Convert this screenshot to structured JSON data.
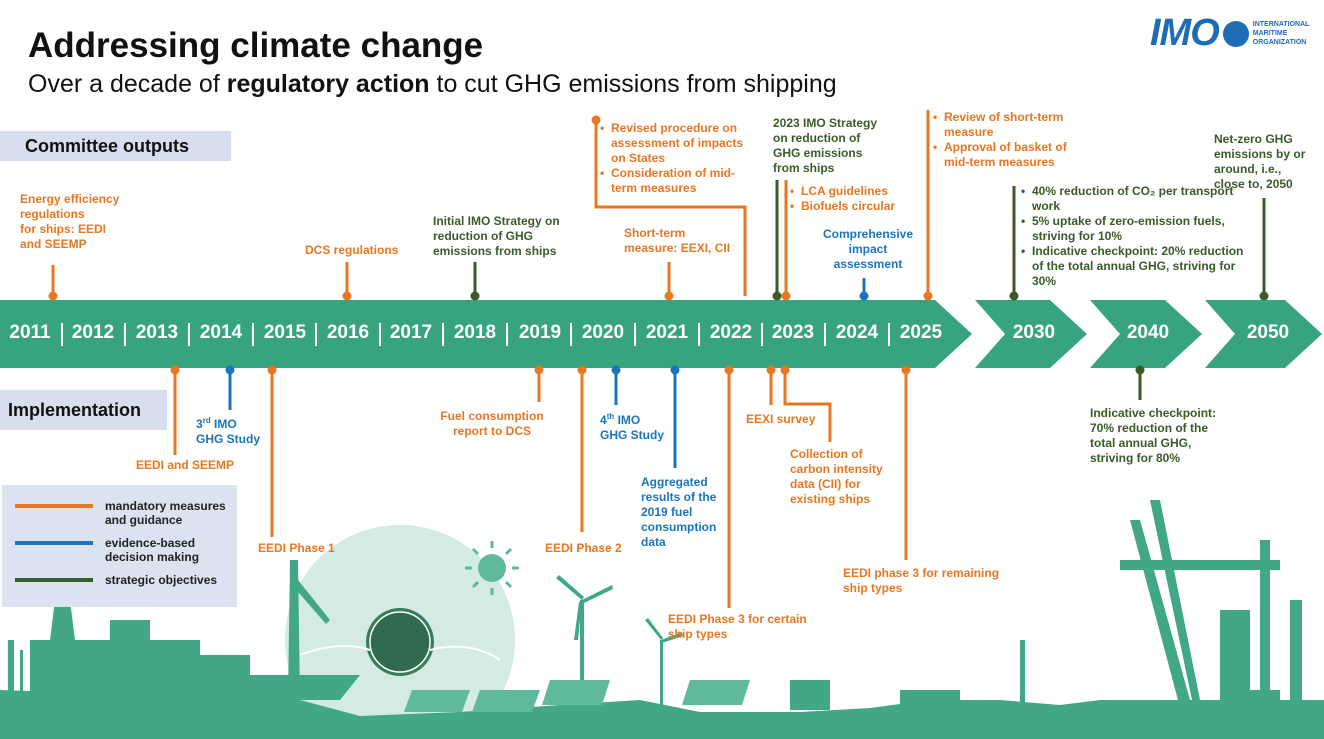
{
  "header": {
    "title": "Addressing climate change",
    "subtitle": {
      "before": "Over a decade of ",
      "bold": "regulatory action",
      "after": " to cut GHG emissions from shipping"
    },
    "logo": {
      "mark": "IMO",
      "lines": [
        "INTERNATIONAL",
        "MARITIME",
        "ORGANIZATION"
      ]
    }
  },
  "sections": [
    "Committee outputs",
    "Implementation"
  ],
  "years": [
    "2011",
    "2012",
    "2013",
    "2014",
    "2015",
    "2016",
    "2017",
    "2018",
    "2019",
    "2020",
    "2021",
    "2022",
    "2023",
    "2024",
    "2025",
    "2030",
    "2040",
    "2050"
  ],
  "legend": [
    {
      "label": "mandatory measures and guidance",
      "color": "#e87722"
    },
    {
      "label": "evidence-based decision making",
      "color": "#1b75bc"
    },
    {
      "label": "strategic objectives",
      "color": "#3b5a2a"
    }
  ],
  "committee_outputs": [
    {
      "color": "#e87722",
      "lines": [
        "Energy efficiency",
        "regulations",
        "for ships: EEDI",
        "and SEEMP"
      ]
    },
    {
      "color": "#e87722",
      "lines": [
        "DCS  regulations"
      ]
    },
    {
      "color": "#3b5a2a",
      "lines": [
        "Initial IMO Strategy on",
        "reduction of GHG",
        "emissions from ships"
      ]
    },
    {
      "color": "#e87722",
      "bullets": [
        "Revised procedure on assessment of impacts on States",
        "Consideration of mid-term measures"
      ]
    },
    {
      "color": "#e87722",
      "lines": [
        "Short-term",
        "measure: EEXI,  CII"
      ]
    },
    {
      "color": "#3b5a2a",
      "lines": [
        "2023 IMO Strategy",
        "on reduction of",
        "GHG emissions",
        "from ships"
      ]
    },
    {
      "color": "#e87722",
      "bullets": [
        "LCA guidelines",
        "Biofuels circular"
      ]
    },
    {
      "color": "#1b75bc",
      "lines": [
        "Comprehensive",
        "impact",
        "assessment"
      ]
    },
    {
      "color": "#e87722",
      "bullets": [
        "Review of short-term measure",
        "Approval of basket of mid-term measures"
      ]
    },
    {
      "color": "#3b5a2a",
      "bullets": [
        "40% reduction of CO₂ per transport work",
        "5% uptake of zero-emission fuels, striving for 10%",
        "Indicative checkpoint: 20% reduction of the total annual GHG, striving for 30%"
      ]
    },
    {
      "color": "#3b5a2a",
      "lines": [
        "Net-zero GHG",
        "emissions by or",
        "around, i.e.,",
        "close to, 2050"
      ]
    }
  ],
  "implementation": [
    {
      "color": "#e87722",
      "lines": [
        "EEDI and SEEMP"
      ]
    },
    {
      "color": "#1b75bc",
      "lines": [
        {
          "text": "3",
          "sup": "rd",
          "after": " IMO"
        },
        "GHG  Study"
      ]
    },
    {
      "color": "#e87722",
      "lines": [
        "EEDI  Phase 1"
      ]
    },
    {
      "color": "#e87722",
      "lines": [
        "Fuel consumption",
        "report to DCS"
      ]
    },
    {
      "color": "#e87722",
      "lines": [
        "EEDI  Phase 2"
      ]
    },
    {
      "color": "#1b75bc",
      "lines": [
        {
          "text": "4",
          "sup": "th",
          "after": " IMO"
        },
        "GHG  Study"
      ]
    },
    {
      "color": "#1b75bc",
      "lines": [
        "Aggregated",
        "results of the",
        "2019 fuel",
        "consumption",
        "data"
      ]
    },
    {
      "color": "#e87722",
      "lines": [
        "EEDI  Phase 3 for certain",
        "ship types"
      ]
    },
    {
      "color": "#e87722",
      "lines": [
        "EEXI  survey"
      ]
    },
    {
      "color": "#e87722",
      "lines": [
        "Collection of",
        "carbon intensity",
        "data (CII) for",
        "existing ships"
      ]
    },
    {
      "color": "#e87722",
      "lines": [
        "EEDI  phase 3 for remaining",
        "ship types"
      ]
    },
    {
      "color": "#3b5a2a",
      "lines": [
        "Indicative checkpoint:",
        "70% reduction of the",
        "total annual GHG,",
        "striving for 80%"
      ]
    }
  ]
}
